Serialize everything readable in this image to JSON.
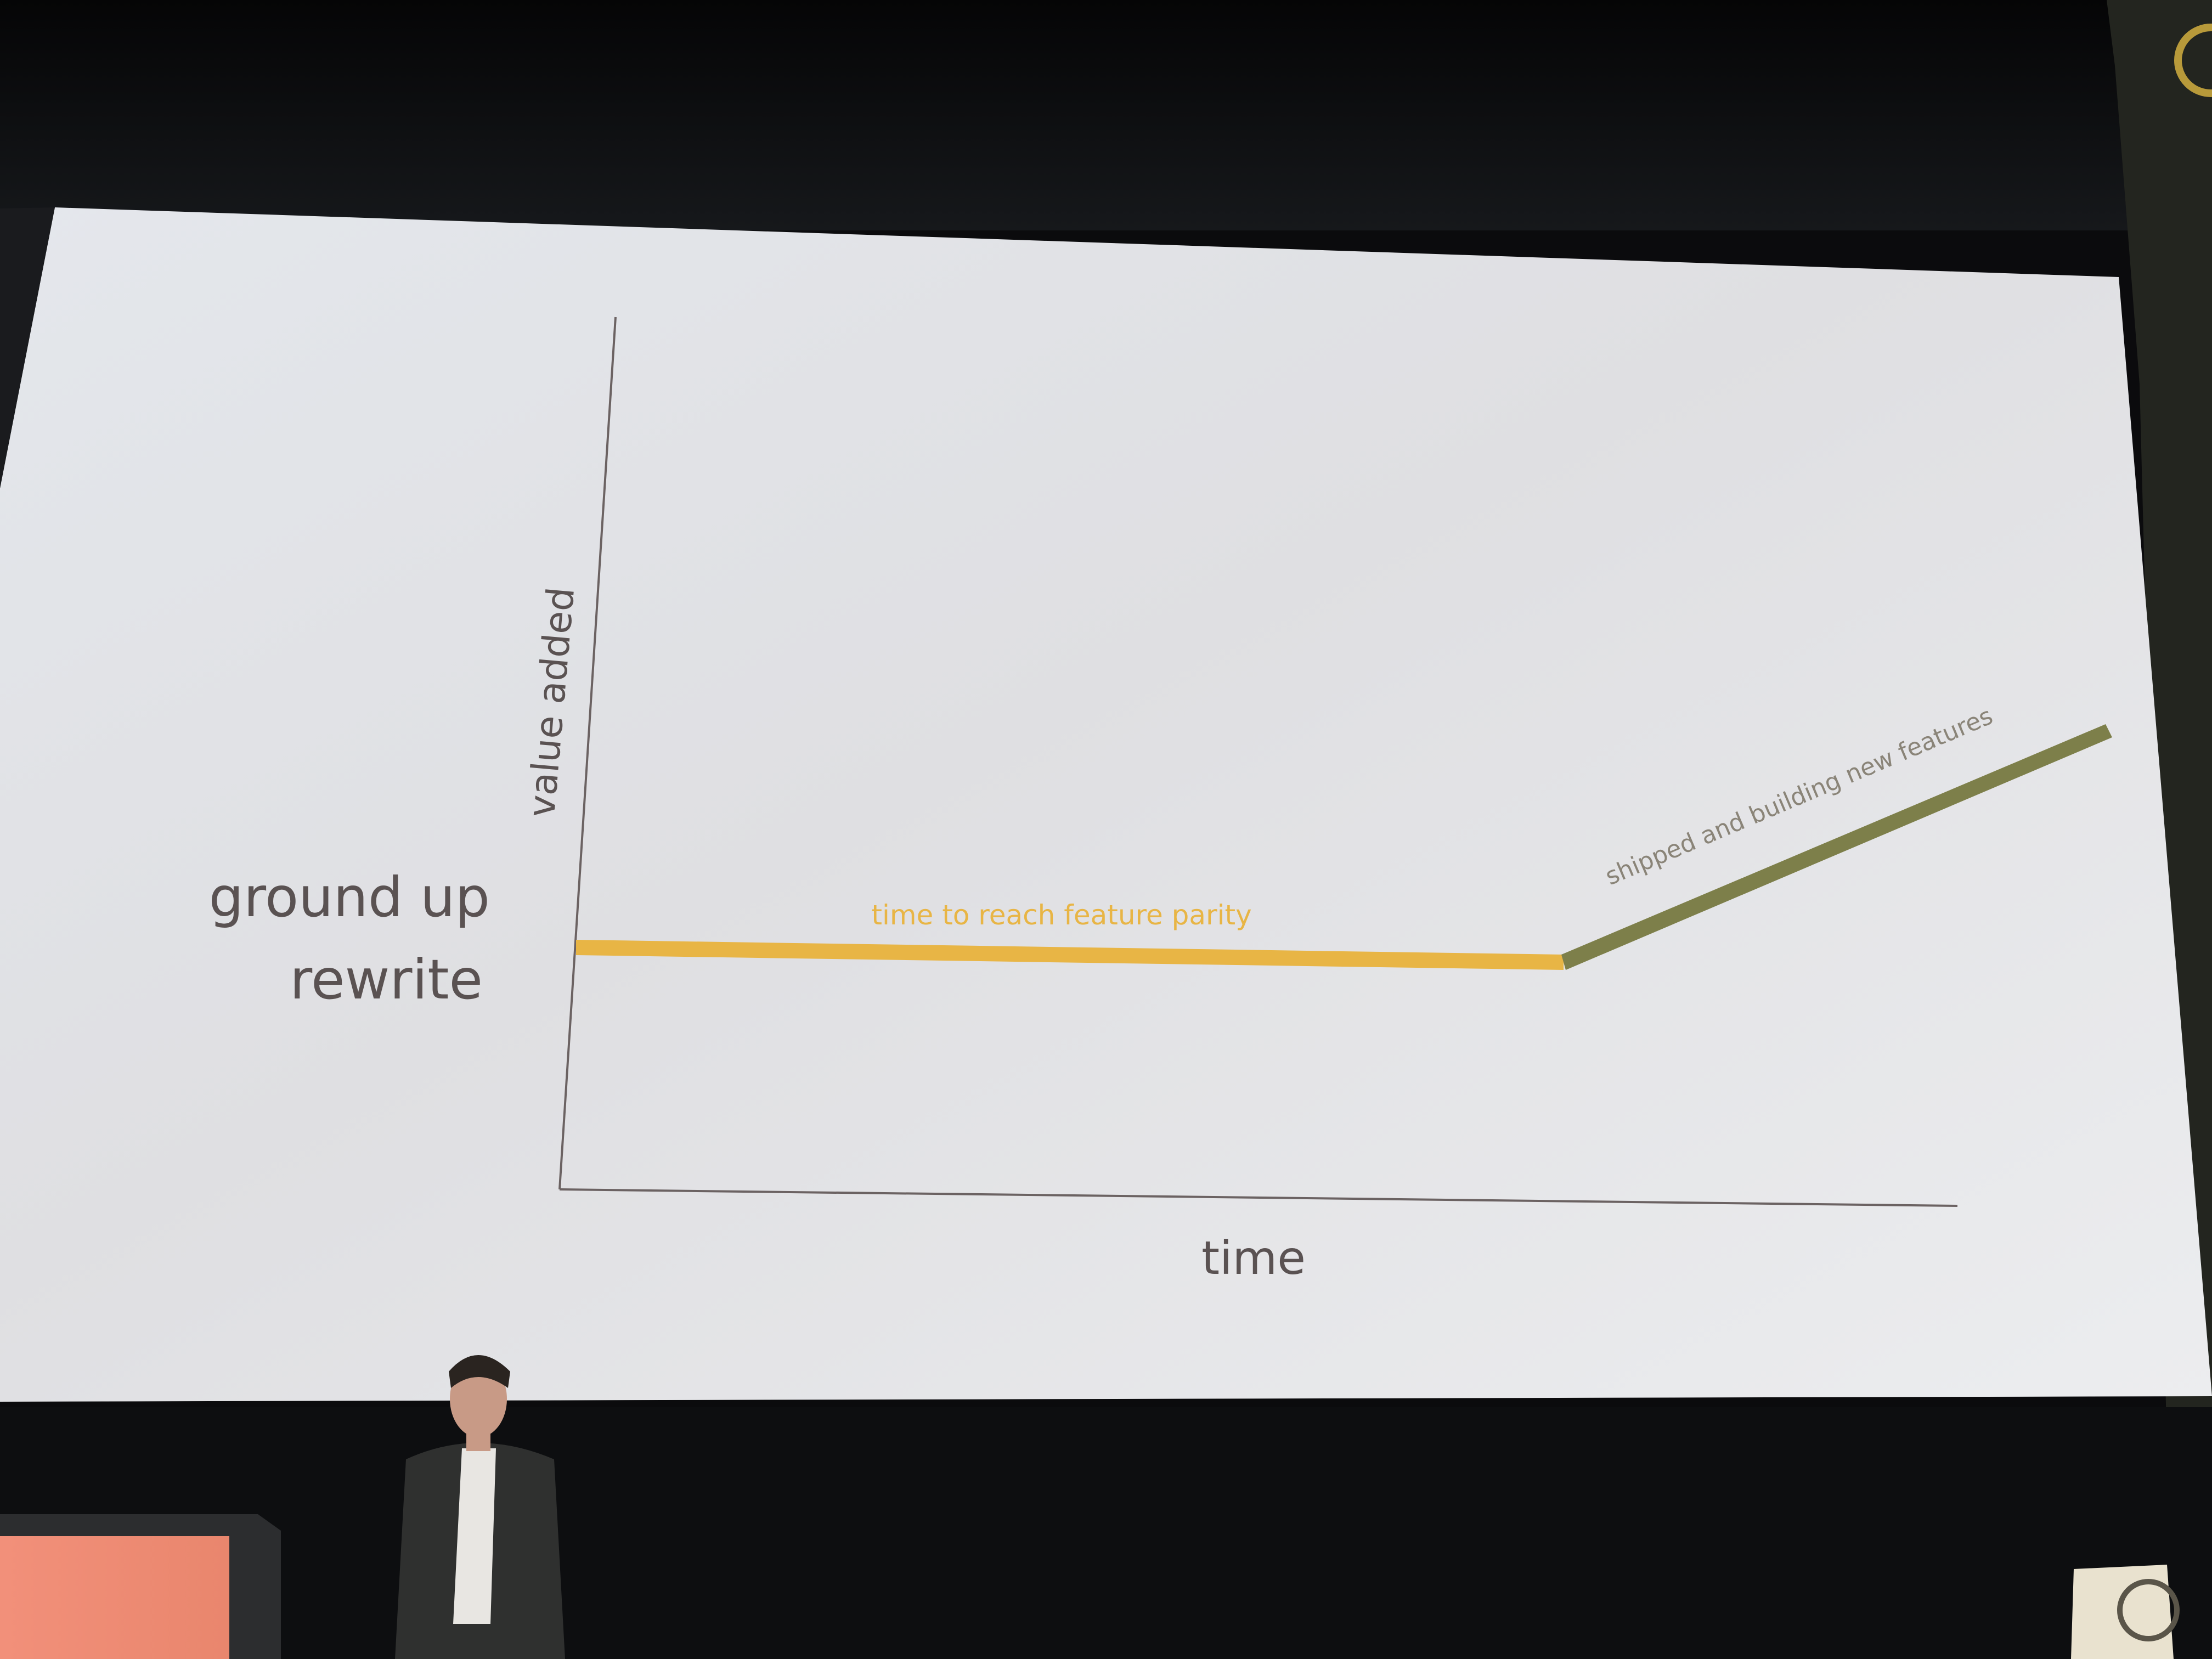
{
  "slide": {
    "side_label_line1": "ground up",
    "side_label_line2": "rewrite",
    "axis_y_label": "value added",
    "axis_x_label": "time",
    "phase1_label": "time to reach feature parity",
    "phase2_label": "shipped and building new features"
  },
  "colors": {
    "phase1": "#e8b545",
    "phase2": "#7d7f4a",
    "text": "#5a5252",
    "axis": "#6b6262"
  }
}
